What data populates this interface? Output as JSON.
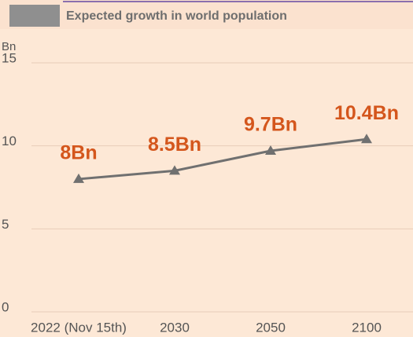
{
  "chart_data": {
    "type": "line",
    "title": "Expected growth in world population",
    "y_label": "Bn",
    "categories": [
      "2022 (Nov 15th)",
      "2030",
      "2050",
      "2100"
    ],
    "series": [
      {
        "name": "World population",
        "color": "#707070",
        "values": [
          8,
          8.5,
          9.7,
          10.4
        ],
        "value_labels": [
          "8Bn",
          "8.5Bn",
          "9.7Bn",
          "10.4Bn"
        ]
      }
    ],
    "ylim": [
      0,
      15
    ],
    "yticks": [
      0,
      5,
      10,
      15
    ],
    "grid": true
  }
}
